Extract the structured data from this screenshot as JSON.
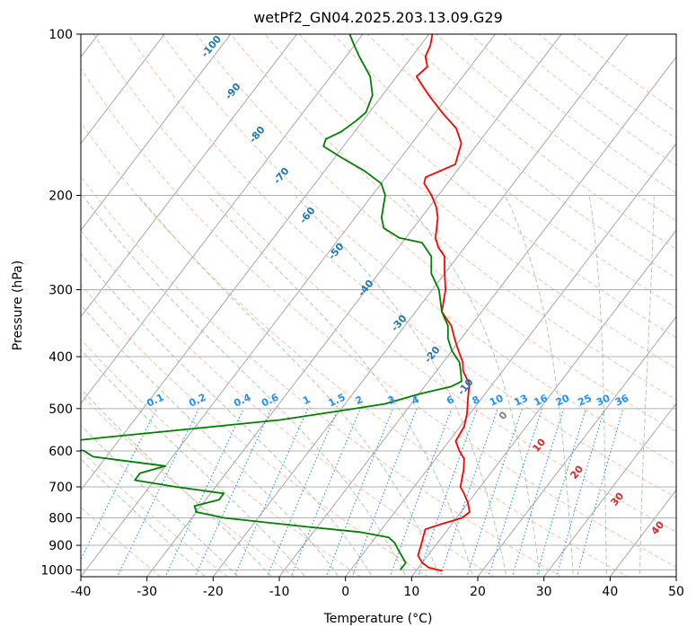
{
  "chart_data": {
    "type": "line",
    "title": "wetPf2_GN04.2025.203.13.09.G29",
    "xlabel": "Temperature (°C)",
    "ylabel": "Pressure (hPa)",
    "xlim": [
      -40,
      50
    ],
    "ylim": [
      1030,
      100
    ],
    "y_scale": "log",
    "x_ticks": [
      "-40",
      "-30",
      "-20",
      "-10",
      "0",
      "10",
      "20",
      "30",
      "40",
      "50"
    ],
    "y_ticks": [
      "100",
      "200",
      "300",
      "400",
      "500",
      "600",
      "700",
      "800",
      "900",
      "1000"
    ],
    "grid": true,
    "series": [
      {
        "color": "#ff0000",
        "points": [
          [
            1005,
            14.0
          ],
          [
            990,
            11.5
          ],
          [
            970,
            10.0
          ],
          [
            940,
            8.5
          ],
          [
            900,
            7.8
          ],
          [
            860,
            7.0
          ],
          [
            840,
            6.6
          ],
          [
            820,
            8.6
          ],
          [
            800,
            10.8
          ],
          [
            780,
            11.3
          ],
          [
            750,
            10.0
          ],
          [
            720,
            8.3
          ],
          [
            700,
            7.0
          ],
          [
            650,
            5.5
          ],
          [
            620,
            4.3
          ],
          [
            600,
            2.7
          ],
          [
            575,
            1.0
          ],
          [
            540,
            0.6
          ],
          [
            510,
            -0.5
          ],
          [
            480,
            -2.0
          ],
          [
            450,
            -3.5
          ],
          [
            440,
            -4.5
          ],
          [
            425,
            -6.0
          ],
          [
            410,
            -7.0
          ],
          [
            400,
            -8.0
          ],
          [
            385,
            -9.5
          ],
          [
            370,
            -11.0
          ],
          [
            350,
            -13.0
          ],
          [
            330,
            -16.0
          ],
          [
            300,
            -18.0
          ],
          [
            280,
            -20.0
          ],
          [
            260,
            -22.0
          ],
          [
            250,
            -24.0
          ],
          [
            240,
            -25.5
          ],
          [
            220,
            -27.5
          ],
          [
            210,
            -29.0
          ],
          [
            200,
            -31.0
          ],
          [
            190,
            -33.5
          ],
          [
            185,
            -34.0
          ],
          [
            175,
            -31.0
          ],
          [
            165,
            -32.0
          ],
          [
            160,
            -32.5
          ],
          [
            150,
            -35.0
          ],
          [
            140,
            -39.0
          ],
          [
            130,
            -43.0
          ],
          [
            120,
            -47.0
          ],
          [
            115,
            -46.5
          ],
          [
            110,
            -48.0
          ],
          [
            105,
            -48.5
          ],
          [
            100,
            -49.5
          ]
        ]
      },
      {
        "color": "#008000",
        "points": [
          [
            1000,
            7.5
          ],
          [
            970,
            7.5
          ],
          [
            940,
            6.0
          ],
          [
            910,
            4.5
          ],
          [
            890,
            3.5
          ],
          [
            870,
            2.0
          ],
          [
            850,
            -3.0
          ],
          [
            830,
            -12.0
          ],
          [
            800,
            -25.0
          ],
          [
            780,
            -30.0
          ],
          [
            760,
            -31.0
          ],
          [
            740,
            -28.0
          ],
          [
            720,
            -28.0
          ],
          [
            710,
            -32.0
          ],
          [
            700,
            -36.0
          ],
          [
            680,
            -43.0
          ],
          [
            660,
            -43.0
          ],
          [
            640,
            -40.0
          ],
          [
            615,
            -52.0
          ],
          [
            600,
            -54.0
          ],
          [
            580,
            -60.0
          ],
          [
            565,
            -52.0
          ],
          [
            545,
            -40.0
          ],
          [
            525,
            -28.0
          ],
          [
            505,
            -20.0
          ],
          [
            490,
            -14.0
          ],
          [
            470,
            -10.0
          ],
          [
            455,
            -6.0
          ],
          [
            445,
            -5.0
          ],
          [
            430,
            -6.0
          ],
          [
            410,
            -7.5
          ],
          [
            390,
            -10.0
          ],
          [
            370,
            -12.0
          ],
          [
            350,
            -13.5
          ],
          [
            330,
            -16.0
          ],
          [
            300,
            -19.0
          ],
          [
            280,
            -22.0
          ],
          [
            260,
            -24.0
          ],
          [
            245,
            -27.0
          ],
          [
            240,
            -31.0
          ],
          [
            230,
            -34.5
          ],
          [
            220,
            -36.0
          ],
          [
            210,
            -37.0
          ],
          [
            200,
            -38.0
          ],
          [
            190,
            -40.0
          ],
          [
            180,
            -44.0
          ],
          [
            170,
            -49.0
          ],
          [
            162,
            -53.0
          ],
          [
            157,
            -53.5
          ],
          [
            152,
            -52.0
          ],
          [
            145,
            -51.0
          ],
          [
            140,
            -50.5
          ],
          [
            130,
            -51.5
          ],
          [
            120,
            -54.0
          ],
          [
            110,
            -58.0
          ],
          [
            105,
            -60.0
          ],
          [
            100,
            -62.0
          ]
        ]
      }
    ],
    "dry_adiabat_labels": [
      "-100",
      "-90",
      "-80",
      "-70",
      "-60",
      "-50",
      "-40",
      "-30",
      "-20",
      "-10"
    ],
    "mixing_ratio_labels": [
      "0.1",
      "0.2",
      "0.4",
      "0.6",
      "1",
      "1.5",
      "2",
      "3",
      "4",
      "6",
      "8",
      "10",
      "13",
      "16",
      "20",
      "25",
      "30",
      "36"
    ],
    "moist_adiabat_labels": [
      "0",
      "10",
      "20",
      "30",
      "40"
    ],
    "colors": {
      "temperature": "#ff0000",
      "dewpoint": "#008000",
      "isotherm": "#a0a0a0",
      "dry_adiabat": "#f4a582",
      "moist_adiabat": "#8fbc8f",
      "mixing_ratio": "#1e90ff",
      "label_blue": "#1f77b4",
      "label_red": "#d62728"
    }
  }
}
